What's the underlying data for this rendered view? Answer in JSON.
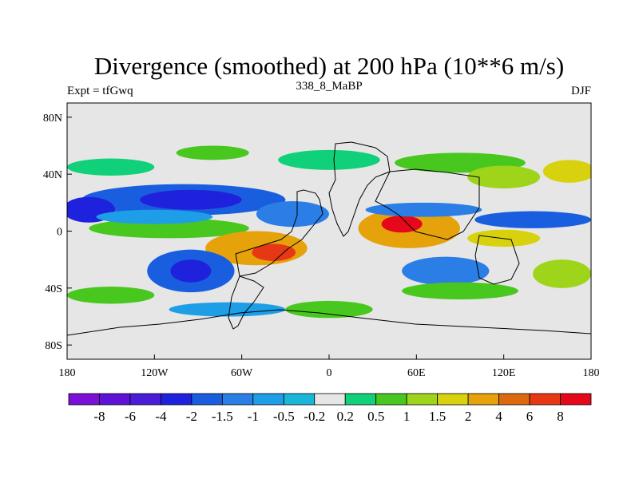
{
  "chart_data": {
    "type": "heatmap",
    "title": "Divergence (smoothed) at 200 hPa (10**6 m/s)",
    "left_string": "Expt = tfGwq",
    "center_string": "338_8_MaBP",
    "right_string": "DJF",
    "x_ticks": [
      {
        "value": -180,
        "label": "180"
      },
      {
        "value": -120,
        "label": "120W"
      },
      {
        "value": -60,
        "label": "60W"
      },
      {
        "value": 0,
        "label": "0"
      },
      {
        "value": 60,
        "label": "60E"
      },
      {
        "value": 120,
        "label": "120E"
      },
      {
        "value": 180,
        "label": "180"
      }
    ],
    "y_ticks": [
      {
        "value": 80,
        "label": "80N"
      },
      {
        "value": 40,
        "label": "40N"
      },
      {
        "value": 0,
        "label": "0"
      },
      {
        "value": -40,
        "label": "40S"
      },
      {
        "value": -80,
        "label": "80S"
      }
    ],
    "xlim": [
      -180,
      180
    ],
    "ylim": [
      -90,
      90
    ],
    "colorbar": {
      "colors": [
        "#7a0fd6",
        "#5f12d6",
        "#4a1cd8",
        "#1f22dd",
        "#1a5ee0",
        "#2a7ee6",
        "#1e9ee6",
        "#18b6d8",
        "#e6e6e6",
        "#10d07a",
        "#48c81e",
        "#9ed41a",
        "#d8d20e",
        "#e6a20a",
        "#de6810",
        "#e63814",
        "#e4081a"
      ],
      "labels": [
        "-8",
        "-6",
        "-4",
        "-2",
        "-1.5",
        "-1",
        "-0.5",
        "-0.2",
        "0.2",
        "0.5",
        "1",
        "1.5",
        "2",
        "4",
        "6",
        "8"
      ]
    },
    "features": [
      {
        "name": "pacific-north-convergence",
        "kind": "ellipse",
        "lon": -100,
        "lat": 22,
        "rx": 70,
        "ry": 11,
        "level": 4
      },
      {
        "name": "pacific-north-core",
        "kind": "ellipse",
        "lon": -95,
        "lat": 22,
        "rx": 35,
        "ry": 7,
        "level": 3
      },
      {
        "name": "pacific-subtropical-west",
        "kind": "ellipse",
        "lon": -165,
        "lat": 15,
        "rx": 18,
        "ry": 9,
        "level": 3
      },
      {
        "name": "north-pacific-divergence",
        "kind": "ellipse",
        "lon": -150,
        "lat": 45,
        "rx": 30,
        "ry": 6,
        "level": 9
      },
      {
        "name": "north-pacific-divergence-2",
        "kind": "ellipse",
        "lon": -80,
        "lat": 55,
        "rx": 25,
        "ry": 5,
        "level": 10
      },
      {
        "name": "north-atlantic-band",
        "kind": "ellipse",
        "lon": 0,
        "lat": 50,
        "rx": 35,
        "ry": 7,
        "level": 9
      },
      {
        "name": "north-asia-band",
        "kind": "ellipse",
        "lon": 90,
        "lat": 48,
        "rx": 45,
        "ry": 7,
        "level": 10
      },
      {
        "name": "east-asia-positive",
        "kind": "ellipse",
        "lon": 120,
        "lat": 38,
        "rx": 25,
        "ry": 8,
        "level": 11
      },
      {
        "name": "west-pacific-positive",
        "kind": "ellipse",
        "lon": 165,
        "lat": 42,
        "rx": 18,
        "ry": 8,
        "level": 12
      },
      {
        "name": "equatorial-pacific-positive",
        "kind": "ellipse",
        "lon": -110,
        "lat": 2,
        "rx": 55,
        "ry": 7,
        "level": 10
      },
      {
        "name": "tropical-pacific-negative",
        "kind": "ellipse",
        "lon": -120,
        "lat": 10,
        "rx": 40,
        "ry": 5,
        "level": 6
      },
      {
        "name": "south-america-divergence",
        "kind": "ellipse",
        "lon": -50,
        "lat": -12,
        "rx": 35,
        "ry": 12,
        "level": 13
      },
      {
        "name": "south-america-core",
        "kind": "ellipse",
        "lon": -38,
        "lat": -15,
        "rx": 15,
        "ry": 6,
        "level": 15
      },
      {
        "name": "south-pacific-negative",
        "kind": "ellipse",
        "lon": -95,
        "lat": -28,
        "rx": 30,
        "ry": 15,
        "level": 4
      },
      {
        "name": "south-pacific-core",
        "kind": "ellipse",
        "lon": -95,
        "lat": -28,
        "rx": 14,
        "ry": 8,
        "level": 3
      },
      {
        "name": "atlantic-negative",
        "kind": "ellipse",
        "lon": -25,
        "lat": 12,
        "rx": 25,
        "ry": 9,
        "level": 5
      },
      {
        "name": "africa-indian-divergence",
        "kind": "ellipse",
        "lon": 55,
        "lat": 2,
        "rx": 35,
        "ry": 14,
        "level": 13
      },
      {
        "name": "indian-core",
        "kind": "ellipse",
        "lon": 50,
        "lat": 5,
        "rx": 14,
        "ry": 6,
        "level": 16
      },
      {
        "name": "indian-negative-band",
        "kind": "ellipse",
        "lon": 65,
        "lat": 15,
        "rx": 40,
        "ry": 5,
        "level": 5
      },
      {
        "name": "west-pacific-negative",
        "kind": "ellipse",
        "lon": 140,
        "lat": 8,
        "rx": 40,
        "ry": 6,
        "level": 4
      },
      {
        "name": "maritime-positive",
        "kind": "ellipse",
        "lon": 120,
        "lat": -5,
        "rx": 25,
        "ry": 6,
        "level": 12
      },
      {
        "name": "south-indian-negative",
        "kind": "ellipse",
        "lon": 80,
        "lat": -28,
        "rx": 30,
        "ry": 10,
        "level": 5
      },
      {
        "name": "south-indian-positive",
        "kind": "ellipse",
        "lon": 90,
        "lat": -42,
        "rx": 40,
        "ry": 6,
        "level": 10
      },
      {
        "name": "southern-ocean-positive",
        "kind": "ellipse",
        "lon": -150,
        "lat": -45,
        "rx": 30,
        "ry": 6,
        "level": 10
      },
      {
        "name": "southern-ocean-negative",
        "kind": "ellipse",
        "lon": -70,
        "lat": -55,
        "rx": 40,
        "ry": 5,
        "level": 6
      },
      {
        "name": "southern-ocean-positive-2",
        "kind": "ellipse",
        "lon": 0,
        "lat": -55,
        "rx": 30,
        "ry": 6,
        "level": 10
      },
      {
        "name": "south-pacific-east-positive",
        "kind": "ellipse",
        "lon": 160,
        "lat": -30,
        "rx": 20,
        "ry": 10,
        "level": 11
      }
    ]
  }
}
